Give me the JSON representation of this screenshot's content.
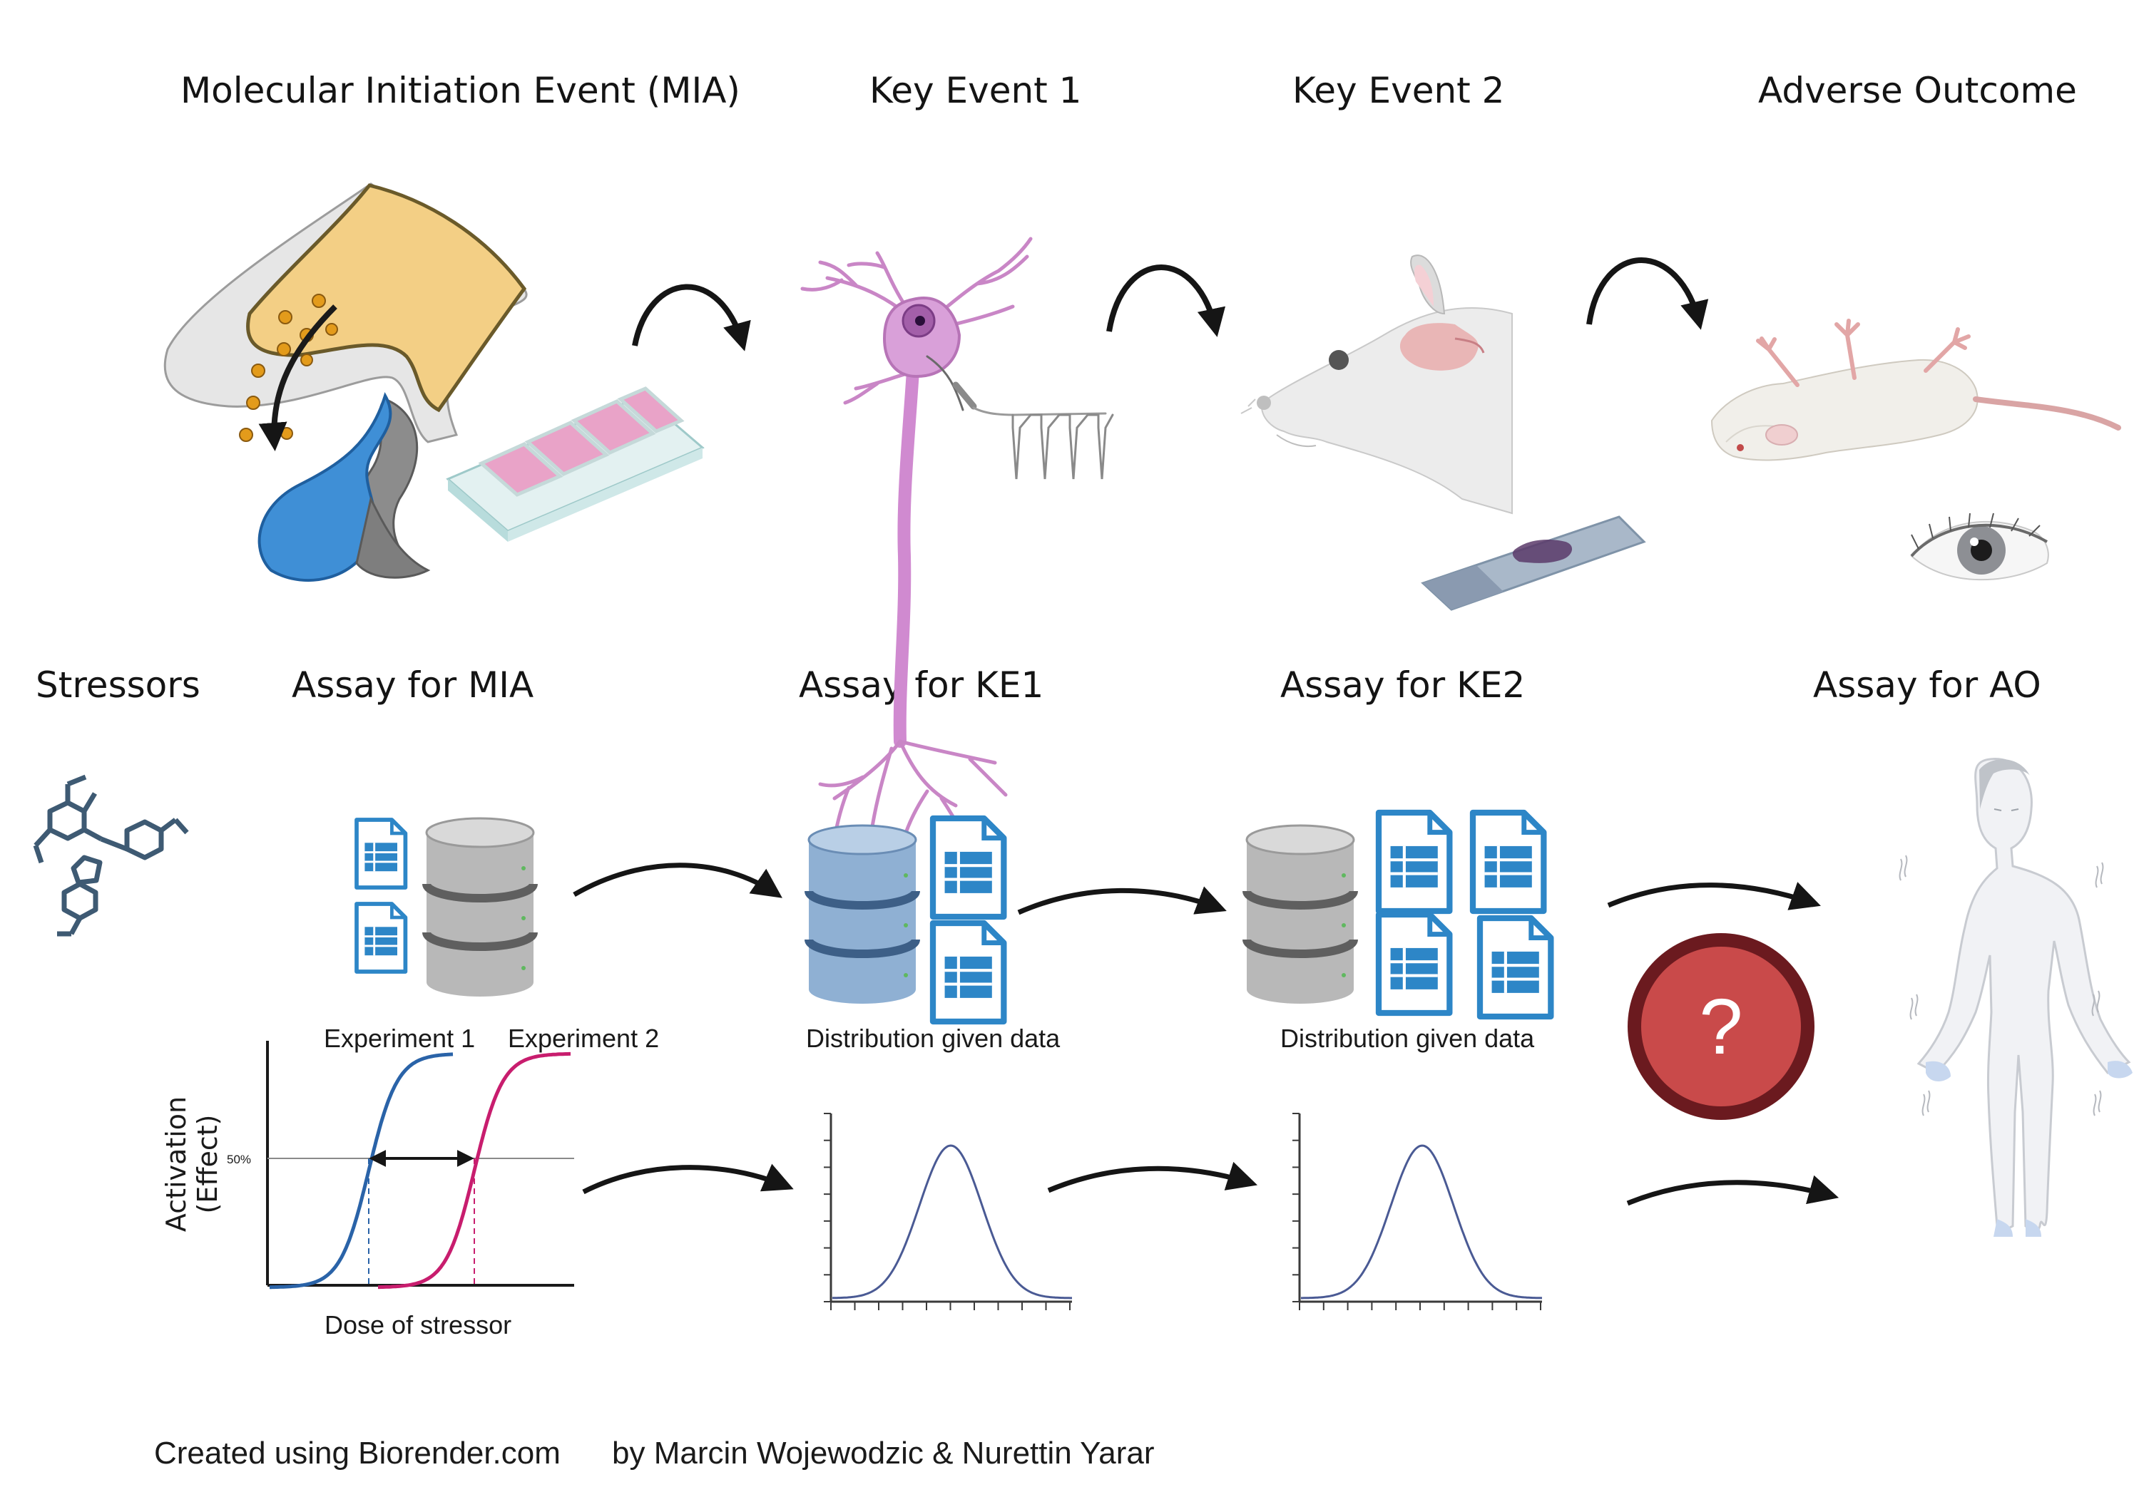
{
  "top_row": {
    "mie_title": "Molecular Initiation Event (MIA)",
    "ke1_title": "Key Event 1",
    "ke2_title": "Key Event 2",
    "ao_title": "Adverse Outcome"
  },
  "bottom_row": {
    "stressors_title": "Stressors",
    "assay_mia_title": "Assay for MIA",
    "assay_ke1_title": "Assay for KE1",
    "assay_ke2_title": "Assay for KE2",
    "assay_ao_title": "Assay for AO"
  },
  "dose_response_chart": {
    "experiment_1_label": "Experiment 1",
    "experiment_2_label": "Experiment 2",
    "ylabel_line1": "Activation",
    "ylabel_line2": "(Effect)",
    "xlabel": "Dose of stressor",
    "tick_50": "50%",
    "colors": {
      "experiment_1": "#2a63a8",
      "experiment_2": "#c81d6e"
    }
  },
  "distribution_ke1": {
    "label": "Distribution given data"
  },
  "distribution_ke2": {
    "label": "Distribution given data"
  },
  "unknown_symbol": "?",
  "credit": {
    "created_text": "Created  using Biorender.com",
    "authors_text": "by Marcin Wojewodzic & Nurettin Yarar"
  },
  "colors": {
    "arrow": "#151515",
    "database_grey": "#b3b3b3",
    "database_blue": "#7ea2c8",
    "document_blue": "#2d86c7",
    "question_red": "#c94a4a",
    "neuron_pink": "#c98ac9",
    "curve_navy": "#4a5a94"
  },
  "icons": [
    "synaptic-terminal-icon",
    "cell-culture-slide-icon",
    "neuron-icon",
    "rat-head-icon",
    "tissue-slide-icon",
    "rat-lying-icon",
    "eye-icon",
    "molecule-icon",
    "database-icon",
    "document-table-icon",
    "question-mark-icon",
    "human-figure-icon"
  ]
}
